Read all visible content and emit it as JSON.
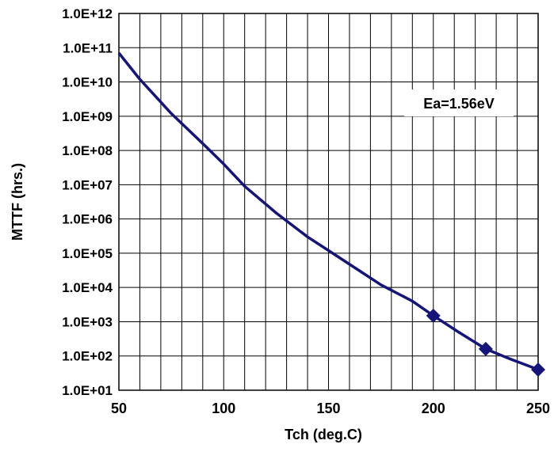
{
  "chart_data": {
    "type": "line",
    "title": "",
    "xlabel": "Tch (deg.C)",
    "ylabel": "MTTF (hrs.)",
    "xlim": [
      50,
      250
    ],
    "ylim": [
      10,
      1000000000000
    ],
    "y_scale": "log",
    "grid": true,
    "x_ticks": [
      "50",
      "100",
      "150",
      "200",
      "250"
    ],
    "y_ticks": [
      "1.0E+01",
      "1.0E+02",
      "1.0E+03",
      "1.0E+04",
      "1.0E+05",
      "1.0E+06",
      "1.0E+07",
      "1.0E+08",
      "1.0E+09",
      "1.0E+10",
      "1.0E+11",
      "1.0E+12"
    ],
    "annotation": "Ea=1.56eV",
    "series": [
      {
        "color": "#14147a",
        "marker": "none",
        "x": [
          50,
          60,
          75,
          90,
          100,
          110,
          125,
          140,
          150,
          165,
          175,
          190,
          200,
          212,
          225,
          237,
          250
        ],
        "y": [
          70000000000,
          12000000000,
          1200000000,
          160000000,
          40000000,
          9000000,
          1500000,
          300000,
          120000,
          30000,
          12000,
          4000,
          1500,
          500,
          160,
          80,
          40
        ]
      },
      {
        "color": "#14147a",
        "marker": "diamond",
        "x": [
          200,
          225,
          250
        ],
        "y": [
          1500,
          160,
          40
        ]
      }
    ]
  }
}
